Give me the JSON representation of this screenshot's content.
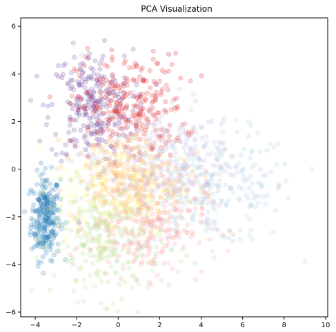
{
  "chart_data": {
    "type": "scatter",
    "title": "PCA Visualization",
    "xlabel": "",
    "ylabel": "",
    "xlim": [
      -4.7,
      10.1
    ],
    "ylim": [
      -6.2,
      6.35
    ],
    "x_ticks": [
      -4,
      -2,
      0,
      2,
      4,
      6,
      8,
      10
    ],
    "y_ticks": [
      -6,
      -4,
      -2,
      0,
      2,
      4,
      6
    ],
    "grid": false,
    "legend": "none",
    "point_alpha": 0.2,
    "series": [
      {
        "color": "#1f78b4",
        "center": [
          -3.5,
          -2.0
        ],
        "spread": [
          0.35,
          0.9
        ]
      },
      {
        "color": "#a6cee3",
        "center": [
          4.5,
          -0.8
        ],
        "spread": [
          2.0,
          1.2
        ]
      },
      {
        "color": "#6a3d9a",
        "center": [
          -1.3,
          2.6
        ],
        "spread": [
          1.0,
          1.2
        ]
      },
      {
        "color": "#e31a1c",
        "center": [
          0.6,
          2.6
        ],
        "spread": [
          1.3,
          1.1
        ]
      },
      {
        "color": "#b2df8a",
        "center": [
          -0.5,
          -3.0
        ],
        "spread": [
          1.3,
          1.2
        ]
      },
      {
        "color": "#fb9a99",
        "center": [
          1.4,
          -2.3
        ],
        "spread": [
          1.4,
          1.1
        ]
      },
      {
        "color": "#ffff99",
        "center": [
          0.0,
          -0.8
        ],
        "spread": [
          1.5,
          1.0
        ]
      },
      {
        "color": "#fdbf6f",
        "center": [
          0.5,
          -0.3
        ],
        "spread": [
          1.4,
          1.0
        ]
      },
      {
        "color": "#cab2d6",
        "center": [
          1.8,
          0.5
        ],
        "spread": [
          1.8,
          1.2
        ]
      }
    ]
  }
}
